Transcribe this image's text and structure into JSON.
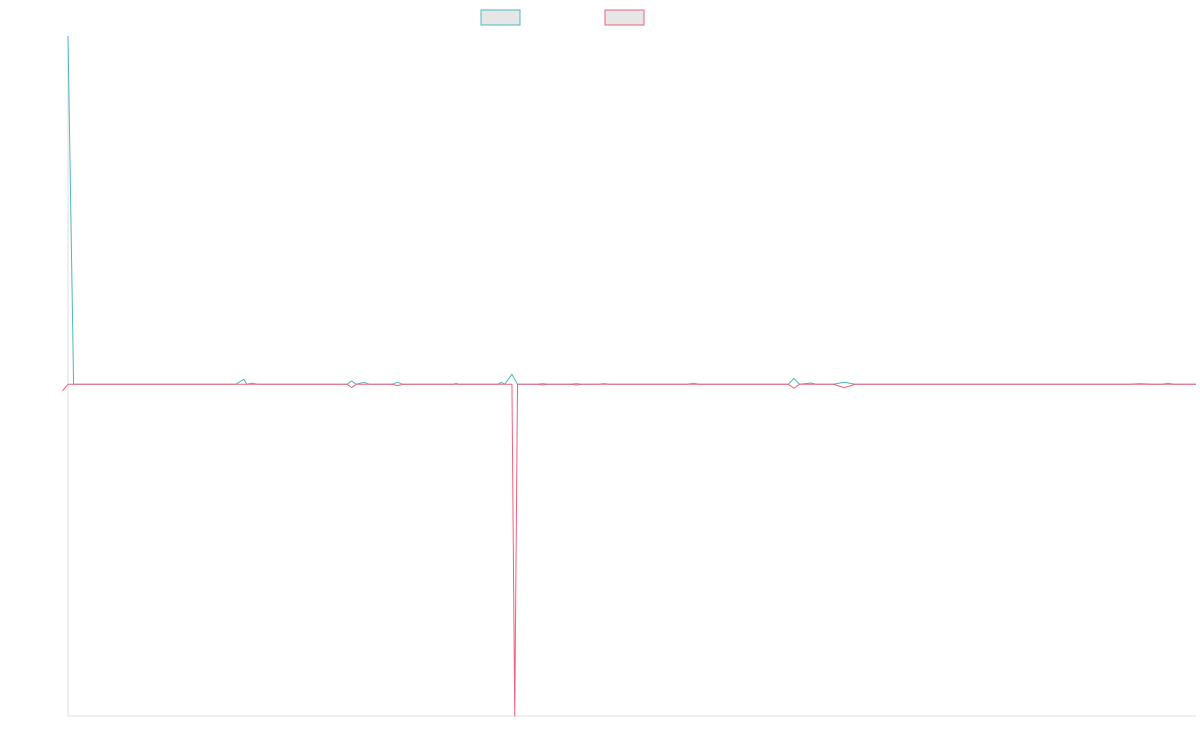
{
  "chart_data": {
    "type": "line",
    "title": "",
    "xlabel": "",
    "ylabel": "",
    "ylim": [
      -1,
      1.05
    ],
    "grid": false,
    "legend_placement": "top-center",
    "series": [
      {
        "color": "#4bb8c1",
        "points": [
          [
            0,
            1.05
          ],
          [
            1,
            0
          ],
          [
            30,
            0
          ],
          [
            31,
            0.01
          ],
          [
            31.5,
            0.015
          ],
          [
            32,
            0
          ],
          [
            33,
            0.003
          ],
          [
            34,
            0
          ],
          [
            50,
            0
          ],
          [
            50.8,
            0.01
          ],
          [
            51.6,
            0
          ],
          [
            53,
            0.006
          ],
          [
            54,
            0
          ],
          [
            58,
            0
          ],
          [
            59,
            0.006
          ],
          [
            60,
            0
          ],
          [
            69,
            0
          ],
          [
            69.5,
            0.003
          ],
          [
            70,
            0
          ],
          [
            77,
            0
          ],
          [
            77.6,
            0.006
          ],
          [
            78.2,
            0
          ],
          [
            79.5,
            0.03
          ],
          [
            80.5,
            0
          ],
          [
            84,
            0
          ],
          [
            85,
            0.002
          ],
          [
            86,
            0
          ],
          [
            90,
            0
          ],
          [
            91,
            0.002
          ],
          [
            92,
            0
          ],
          [
            95,
            0
          ],
          [
            96,
            0.002
          ],
          [
            97,
            0
          ],
          [
            111,
            0
          ],
          [
            112,
            0.003
          ],
          [
            113,
            0
          ],
          [
            129,
            0
          ],
          [
            130,
            0.018
          ],
          [
            131,
            0
          ],
          [
            133,
            0.004
          ],
          [
            134,
            0
          ],
          [
            137,
            0
          ],
          [
            139,
            0.006
          ],
          [
            141,
            0
          ],
          [
            190,
            0
          ],
          [
            192,
            0.002
          ],
          [
            194,
            0
          ],
          [
            196,
            0
          ],
          [
            197,
            0.003
          ],
          [
            198,
            0
          ],
          [
            202,
            0
          ]
        ]
      },
      {
        "color": "#f0607e",
        "points": [
          [
            -1,
            -0.02
          ],
          [
            0,
            0
          ],
          [
            50,
            0
          ],
          [
            50.8,
            -0.01
          ],
          [
            51.6,
            0
          ],
          [
            58,
            0
          ],
          [
            59,
            -0.004
          ],
          [
            60,
            0
          ],
          [
            79.5,
            0
          ],
          [
            80,
            -1.0
          ],
          [
            80.5,
            0
          ],
          [
            84,
            0
          ],
          [
            85,
            -0.002
          ],
          [
            86,
            0
          ],
          [
            90,
            0
          ],
          [
            91,
            -0.002
          ],
          [
            92,
            0
          ],
          [
            129,
            0
          ],
          [
            130,
            -0.012
          ],
          [
            131,
            0
          ],
          [
            137,
            0
          ],
          [
            139,
            -0.01
          ],
          [
            141,
            0
          ],
          [
            202,
            0
          ]
        ]
      }
    ]
  }
}
